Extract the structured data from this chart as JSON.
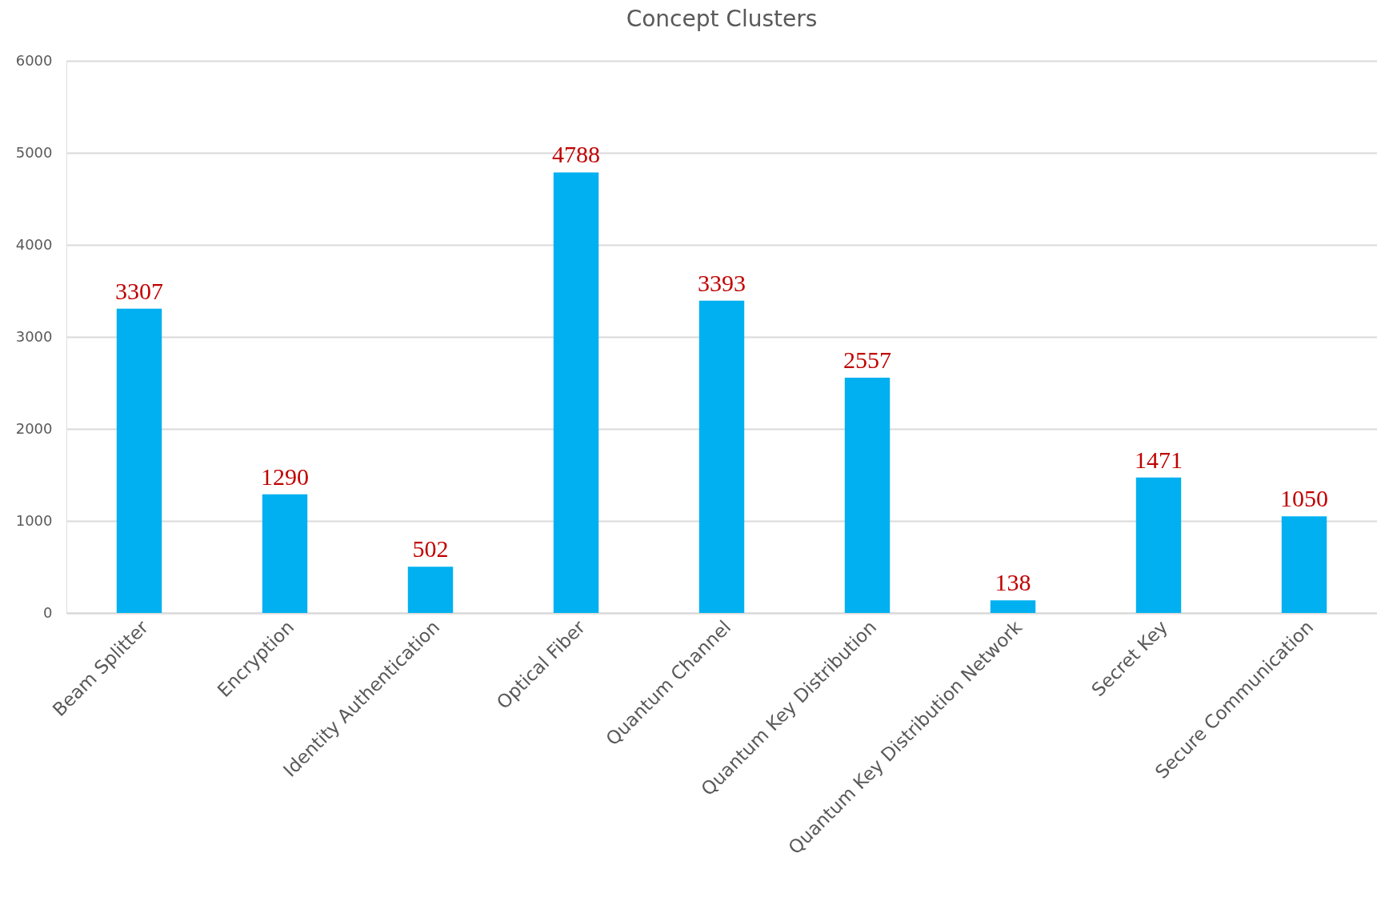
{
  "chart_data": {
    "type": "bar",
    "title": "Concept Clusters",
    "categories": [
      "Beam Splitter",
      "Encryption",
      "Identity Authentication",
      "Optical Fiber",
      "Quantum Channel",
      "Quantum Key Distribution",
      "Quantum Key Distribution Network",
      "Secret Key",
      "Secure Communication"
    ],
    "values": [
      3307,
      1290,
      502,
      4788,
      3393,
      2557,
      138,
      1471,
      1050
    ],
    "color": "#00b0f0",
    "ylim": [
      0,
      6000
    ],
    "yticks": [
      0,
      1000,
      2000,
      3000,
      4000,
      5000,
      6000
    ],
    "grid": "y",
    "data_labels": true
  }
}
